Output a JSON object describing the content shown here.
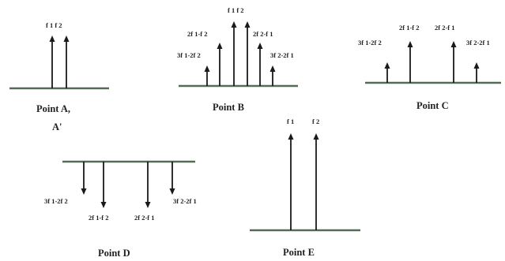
{
  "panels": {
    "A": {
      "title": "Point A,",
      "subtitle": "A'",
      "labels": [
        "f 1 f 2"
      ]
    },
    "B": {
      "title": "Point B",
      "labels": [
        "f 1 f 2",
        "2f 1-f 2",
        "2f 2-f 1",
        "3f 1-2f 2",
        "3f 2-2f 1"
      ]
    },
    "C": {
      "title": "Point C",
      "labels": [
        "2f 1-f 2",
        "2f 2-f 1",
        "3f 1-2f 2",
        "3f 2-2f 1"
      ]
    },
    "D": {
      "title": "Point D",
      "labels": [
        "3f 1-2f 2",
        "3f 2-2f 1",
        "2f 1-f 2",
        "2f 2-f 1"
      ]
    },
    "E": {
      "title": "Point E",
      "labels": [
        "f 1",
        "f 2"
      ]
    }
  }
}
